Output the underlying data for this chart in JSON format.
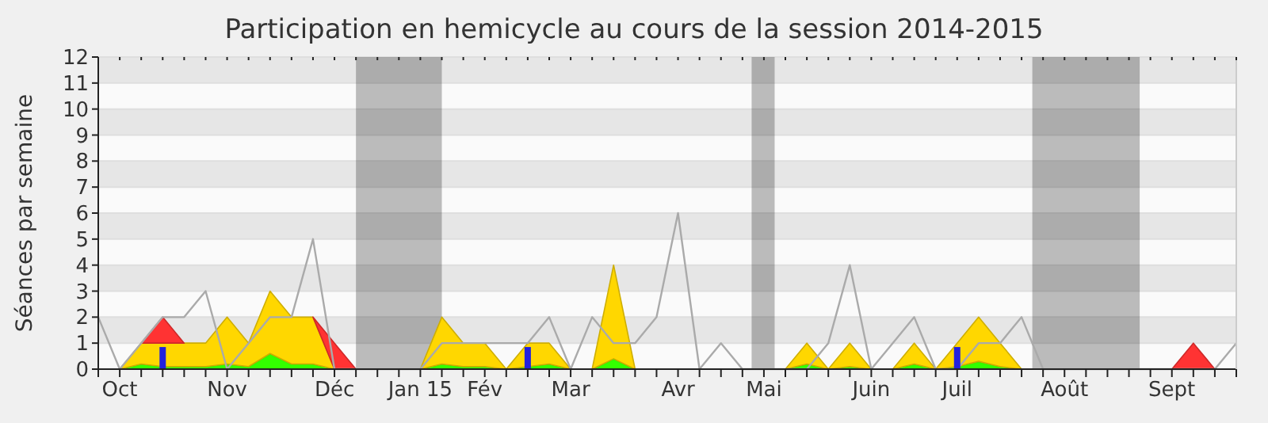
{
  "chart_data": {
    "type": "area",
    "title": "Participation en hemicycle au cours de la session 2014-2015",
    "ylabel": "Séances par semaine",
    "x": [
      "2014-09-29",
      "2014-10-06",
      "2014-10-13",
      "2014-10-20",
      "2014-10-27",
      "2014-11-03",
      "2014-11-10",
      "2014-11-17",
      "2014-11-24",
      "2014-12-01",
      "2014-12-08",
      "2014-12-15",
      "2014-12-22",
      "2014-12-29",
      "2015-01-05",
      "2015-01-12",
      "2015-01-19",
      "2015-01-26",
      "2015-02-02",
      "2015-02-09",
      "2015-02-16",
      "2015-02-23",
      "2015-03-02",
      "2015-03-09",
      "2015-03-16",
      "2015-03-23",
      "2015-03-30",
      "2015-04-06",
      "2015-04-13",
      "2015-04-20",
      "2015-04-27",
      "2015-05-04",
      "2015-05-11",
      "2015-05-18",
      "2015-05-25",
      "2015-06-01",
      "2015-06-08",
      "2015-06-15",
      "2015-06-22",
      "2015-06-29",
      "2015-07-06",
      "2015-07-13",
      "2015-07-20",
      "2015-07-27",
      "2015-08-03",
      "2015-08-10",
      "2015-08-17",
      "2015-08-24",
      "2015-08-31",
      "2015-09-07",
      "2015-09-14",
      "2015-09-21",
      "2015-09-28",
      "2015-10-05"
    ],
    "xlim": [
      "2014-09-29",
      "2015-10-05"
    ],
    "ylim": [
      0,
      12
    ],
    "yticks": [
      0,
      1,
      2,
      3,
      4,
      5,
      6,
      7,
      8,
      9,
      10,
      11,
      12
    ],
    "xticks": [
      {
        "value": "2014-09-29",
        "label": null
      },
      {
        "value": "2014-10-06",
        "label": "Oct"
      },
      {
        "value": "2014-10-13",
        "label": null
      },
      {
        "value": "2014-10-20",
        "label": null
      },
      {
        "value": "2014-10-27",
        "label": null
      },
      {
        "value": "2014-11-03",
        "label": null
      },
      {
        "value": "2014-11-10",
        "label": "Nov"
      },
      {
        "value": "2014-11-17",
        "label": null
      },
      {
        "value": "2014-11-24",
        "label": null
      },
      {
        "value": "2014-12-01",
        "label": null
      },
      {
        "value": "2014-12-08",
        "label": null
      },
      {
        "value": "2014-12-15",
        "label": "Déc"
      },
      {
        "value": "2014-12-22",
        "label": null
      },
      {
        "value": "2014-12-29",
        "label": null
      },
      {
        "value": "2015-01-05",
        "label": null
      },
      {
        "value": "2015-01-12",
        "label": "Jan 15"
      },
      {
        "value": "2015-01-19",
        "label": null
      },
      {
        "value": "2015-01-26",
        "label": null
      },
      {
        "value": "2015-02-02",
        "label": "Fév"
      },
      {
        "value": "2015-02-09",
        "label": null
      },
      {
        "value": "2015-02-16",
        "label": null
      },
      {
        "value": "2015-02-23",
        "label": null
      },
      {
        "value": "2015-03-02",
        "label": "Mar"
      },
      {
        "value": "2015-03-09",
        "label": null
      },
      {
        "value": "2015-03-16",
        "label": null
      },
      {
        "value": "2015-03-23",
        "label": null
      },
      {
        "value": "2015-03-30",
        "label": null
      },
      {
        "value": "2015-04-06",
        "label": "Avr"
      },
      {
        "value": "2015-04-13",
        "label": null
      },
      {
        "value": "2015-04-20",
        "label": null
      },
      {
        "value": "2015-04-27",
        "label": null
      },
      {
        "value": "2015-05-04",
        "label": "Mai"
      },
      {
        "value": "2015-05-11",
        "label": null
      },
      {
        "value": "2015-05-18",
        "label": null
      },
      {
        "value": "2015-05-25",
        "label": null
      },
      {
        "value": "2015-06-01",
        "label": null
      },
      {
        "value": "2015-06-08",
        "label": "Juin"
      },
      {
        "value": "2015-06-15",
        "label": null
      },
      {
        "value": "2015-06-22",
        "label": null
      },
      {
        "value": "2015-06-29",
        "label": null
      },
      {
        "value": "2015-07-06",
        "label": "Juil"
      },
      {
        "value": "2015-07-13",
        "label": null
      },
      {
        "value": "2015-07-20",
        "label": null
      },
      {
        "value": "2015-07-27",
        "label": null
      },
      {
        "value": "2015-08-03",
        "label": null
      },
      {
        "value": "2015-08-10",
        "label": "Août"
      },
      {
        "value": "2015-08-17",
        "label": null
      },
      {
        "value": "2015-08-24",
        "label": null
      },
      {
        "value": "2015-08-31",
        "label": null
      },
      {
        "value": "2015-09-07",
        "label": null
      },
      {
        "value": "2015-09-14",
        "label": "Sept"
      },
      {
        "value": "2015-09-21",
        "label": null
      },
      {
        "value": "2015-09-28",
        "label": null
      },
      {
        "value": "2015-10-05",
        "label": null
      }
    ],
    "grid": "y",
    "stacked": true,
    "bands": [
      {
        "axis": "x",
        "from": "2014-12-22",
        "to": "2015-01-19",
        "color": "#000000"
      },
      {
        "axis": "x",
        "from": "2015-04-30",
        "to": "2015-05-07T12:00",
        "color": "#000000"
      },
      {
        "axis": "x",
        "from": "2015-07-30T12:00",
        "to": "2015-09-03T12:00",
        "color": "#000000"
      }
    ],
    "series": [
      {
        "color": "#33ff00",
        "values": [
          0,
          0,
          0.2,
          0.1,
          0.1,
          0.1,
          0.2,
          0.1,
          0.6,
          0.2,
          0.2,
          0,
          0,
          0,
          0,
          0,
          0.2,
          0.1,
          0.1,
          0,
          0.1,
          0.2,
          0,
          0,
          0.4,
          0,
          0,
          0,
          0,
          0,
          0,
          0,
          0,
          0.2,
          0,
          0.1,
          0,
          0,
          0.2,
          0,
          0.1,
          0.3,
          0.1,
          0,
          0,
          0,
          0,
          0,
          0,
          0,
          0,
          0,
          0,
          0
        ]
      },
      {
        "color": "#ffd700",
        "values": [
          0,
          0,
          0.8,
          0.9,
          0.9,
          0.9,
          1.8,
          0.9,
          2.4,
          1.8,
          1.8,
          0,
          0,
          0,
          0,
          0,
          1.8,
          0.9,
          0.9,
          0,
          0.9,
          0.8,
          0,
          0,
          3.6,
          0,
          0,
          0,
          0,
          0,
          0,
          0,
          0,
          0.8,
          0,
          0.9,
          0,
          0,
          0.8,
          0,
          0.9,
          1.7,
          0.9,
          0,
          0,
          0,
          0,
          0,
          0,
          0,
          0,
          0,
          0,
          0
        ]
      },
      {
        "color": "#ff3333",
        "values": [
          null,
          null,
          0,
          1,
          0,
          null,
          null,
          null,
          null,
          null,
          0,
          1,
          0,
          null,
          null,
          null,
          null,
          null,
          null,
          null,
          null,
          null,
          null,
          null,
          null,
          null,
          null,
          null,
          null,
          null,
          null,
          null,
          null,
          null,
          null,
          null,
          null,
          null,
          null,
          null,
          null,
          null,
          null,
          null,
          null,
          null,
          null,
          null,
          null,
          null,
          0,
          1,
          0,
          null
        ]
      },
      {
        "type": "line",
        "color": "#aaaaaa",
        "values": [
          2,
          0,
          1,
          2,
          2,
          3,
          0,
          1,
          2,
          2,
          5,
          0,
          0,
          0,
          0,
          0,
          1,
          1,
          1,
          1,
          1,
          2,
          0,
          2,
          1,
          1,
          2,
          6,
          0,
          1,
          0,
          0,
          0,
          0,
          1,
          4,
          0,
          1,
          2,
          0,
          0,
          1,
          1,
          2,
          0,
          0,
          0,
          0,
          0,
          0,
          0,
          0,
          0,
          1
        ]
      },
      {
        "type": "bar",
        "color": "#2222dd",
        "x": [
          "2014-10-20",
          "2015-02-16",
          "2015-07-06"
        ],
        "values": [
          0.85,
          0.85,
          0.85
        ]
      }
    ]
  }
}
